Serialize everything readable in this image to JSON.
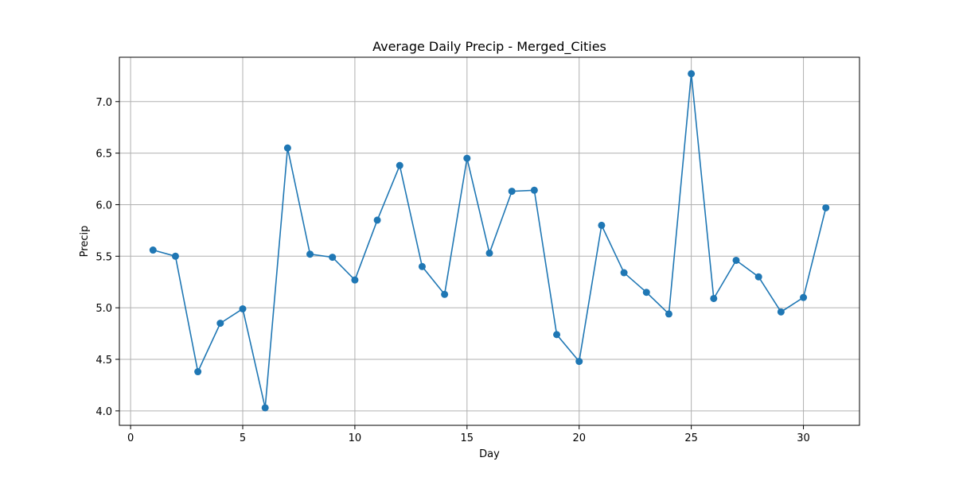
{
  "chart_data": {
    "type": "line",
    "title": "Average Daily Precip - Merged_Cities",
    "xlabel": "Day",
    "ylabel": "Precip",
    "xlim": [
      -0.5,
      32.5
    ],
    "ylim": [
      3.86,
      7.43
    ],
    "xticks": [
      0,
      5,
      10,
      15,
      20,
      25,
      30
    ],
    "xtick_labels": [
      "0",
      "5",
      "10",
      "15",
      "20",
      "25",
      "30"
    ],
    "yticks": [
      4.0,
      4.5,
      5.0,
      5.5,
      6.0,
      6.5,
      7.0
    ],
    "ytick_labels": [
      "4.0",
      "4.5",
      "5.0",
      "5.5",
      "6.0",
      "6.5",
      "7.0"
    ],
    "grid": true,
    "color": "#1f77b4",
    "x": [
      1,
      2,
      3,
      4,
      5,
      6,
      7,
      8,
      9,
      10,
      11,
      12,
      13,
      14,
      15,
      16,
      17,
      18,
      19,
      20,
      21,
      22,
      23,
      24,
      25,
      26,
      27,
      28,
      29,
      30,
      31
    ],
    "values": [
      5.56,
      5.5,
      4.38,
      4.85,
      4.99,
      4.03,
      6.55,
      5.52,
      5.49,
      5.27,
      5.85,
      6.38,
      5.4,
      5.13,
      6.45,
      5.53,
      6.13,
      6.14,
      4.74,
      4.48,
      5.8,
      5.34,
      5.15,
      4.94,
      7.27,
      5.09,
      5.46,
      5.3,
      4.96,
      5.1,
      5.97
    ]
  }
}
